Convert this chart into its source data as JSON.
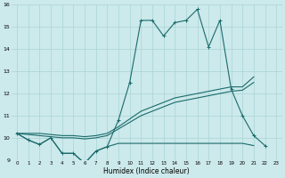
{
  "xlabel": "Humidex (Indice chaleur)",
  "background_color": "#cce9eb",
  "grid_color": "#aad4d6",
  "line_color": "#1a6b6b",
  "x_values": [
    0,
    1,
    2,
    3,
    4,
    5,
    6,
    7,
    8,
    9,
    10,
    11,
    12,
    13,
    14,
    15,
    16,
    17,
    18,
    19,
    20,
    21,
    22,
    23
  ],
  "series1": [
    10.2,
    9.9,
    9.7,
    10.0,
    9.3,
    9.3,
    8.85,
    9.4,
    9.6,
    10.8,
    12.5,
    15.3,
    15.3,
    14.6,
    15.2,
    15.3,
    15.8,
    14.1,
    15.3,
    12.2,
    11.0,
    10.1,
    9.65,
    null
  ],
  "series2": [
    10.2,
    9.9,
    9.7,
    10.0,
    9.3,
    9.3,
    8.85,
    9.4,
    9.6,
    9.75,
    9.75,
    9.75,
    9.75,
    9.75,
    9.75,
    9.75,
    9.75,
    9.75,
    9.75,
    9.75,
    9.75,
    9.65,
    null,
    null
  ],
  "series3": [
    10.2,
    10.15,
    10.1,
    10.05,
    10.0,
    10.0,
    9.95,
    10.0,
    10.1,
    10.4,
    10.7,
    11.0,
    11.2,
    11.4,
    11.6,
    11.7,
    11.8,
    11.9,
    12.0,
    12.1,
    12.15,
    12.5,
    null,
    null
  ],
  "series4": [
    10.2,
    10.2,
    10.2,
    10.15,
    10.1,
    10.1,
    10.05,
    10.1,
    10.2,
    10.5,
    10.85,
    11.2,
    11.4,
    11.6,
    11.8,
    11.9,
    12.0,
    12.1,
    12.2,
    12.3,
    12.3,
    12.75,
    null,
    null
  ],
  "ylim": [
    9,
    16
  ],
  "xlim": [
    -0.5,
    23.5
  ],
  "yticks": [
    9,
    10,
    11,
    12,
    13,
    14,
    15,
    16
  ],
  "xticks": [
    0,
    1,
    2,
    3,
    4,
    5,
    6,
    7,
    8,
    9,
    10,
    11,
    12,
    13,
    14,
    15,
    16,
    17,
    18,
    19,
    20,
    21,
    22,
    23
  ]
}
